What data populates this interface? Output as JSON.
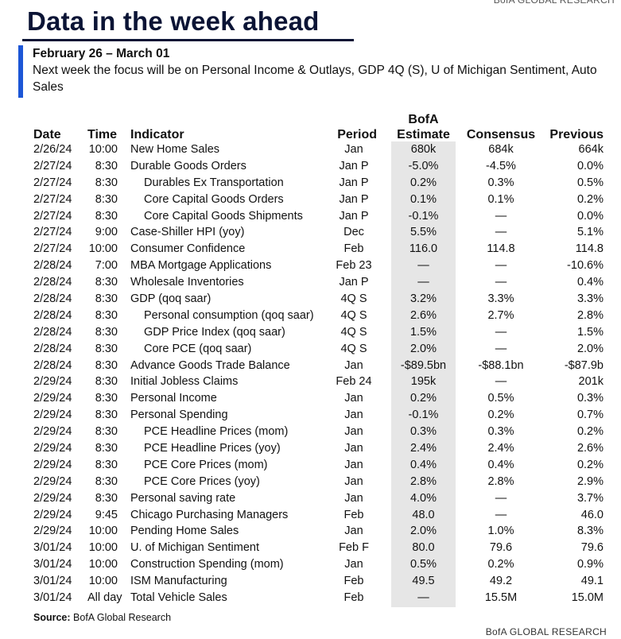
{
  "brand": "BofA GLOBAL RESEARCH",
  "title": "Data in the week ahead",
  "week_range": "February 26 – March 01",
  "focus_text": "Next week the focus will be on Personal Income & Outlays, GDP 4Q (S), U of Michigan Sentiment, Auto Sales",
  "columns": {
    "date": "Date",
    "time": "Time",
    "indicator": "Indicator",
    "period": "Period",
    "estimate_line1": "BofA",
    "estimate_line2": "Estimate",
    "consensus": "Consensus",
    "previous": "Previous"
  },
  "rows": [
    {
      "date": "2/26/24",
      "time": "10:00",
      "indicator": "New Home Sales",
      "sub": false,
      "period": "Jan",
      "estimate": "680k",
      "consensus": "684k",
      "previous": "664k"
    },
    {
      "date": "2/27/24",
      "time": "8:30",
      "indicator": "Durable Goods Orders",
      "sub": false,
      "period": "Jan P",
      "estimate": "-5.0%",
      "consensus": "-4.5%",
      "previous": "0.0%"
    },
    {
      "date": "2/27/24",
      "time": "8:30",
      "indicator": "Durables Ex Transportation",
      "sub": true,
      "period": "Jan P",
      "estimate": "0.2%",
      "consensus": "0.3%",
      "previous": "0.5%"
    },
    {
      "date": "2/27/24",
      "time": "8:30",
      "indicator": "Core Capital Goods Orders",
      "sub": true,
      "period": "Jan P",
      "estimate": "0.1%",
      "consensus": "0.1%",
      "previous": "0.2%"
    },
    {
      "date": "2/27/24",
      "time": "8:30",
      "indicator": "Core Capital Goods Shipments",
      "sub": true,
      "period": "Jan P",
      "estimate": "-0.1%",
      "consensus": "—",
      "previous": "0.0%"
    },
    {
      "date": "2/27/24",
      "time": "9:00",
      "indicator": "Case-Shiller HPI (yoy)",
      "sub": false,
      "period": "Dec",
      "estimate": "5.5%",
      "consensus": "—",
      "previous": "5.1%"
    },
    {
      "date": "2/27/24",
      "time": "10:00",
      "indicator": "Consumer Confidence",
      "sub": false,
      "period": "Feb",
      "estimate": "116.0",
      "consensus": "114.8",
      "previous": "114.8"
    },
    {
      "date": "2/28/24",
      "time": "7:00",
      "indicator": "MBA Mortgage Applications",
      "sub": false,
      "period": "Feb 23",
      "estimate": "—",
      "consensus": "—",
      "previous": "-10.6%"
    },
    {
      "date": "2/28/24",
      "time": "8:30",
      "indicator": "Wholesale Inventories",
      "sub": false,
      "period": "Jan P",
      "estimate": "—",
      "consensus": "—",
      "previous": "0.4%"
    },
    {
      "date": "2/28/24",
      "time": "8:30",
      "indicator": "GDP (qoq saar)",
      "sub": false,
      "period": "4Q S",
      "estimate": "3.2%",
      "consensus": "3.3%",
      "previous": "3.3%"
    },
    {
      "date": "2/28/24",
      "time": "8:30",
      "indicator": "Personal consumption (qoq saar)",
      "sub": true,
      "period": "4Q S",
      "estimate": "2.6%",
      "consensus": "2.7%",
      "previous": "2.8%"
    },
    {
      "date": "2/28/24",
      "time": "8:30",
      "indicator": "GDP Price Index (qoq saar)",
      "sub": true,
      "period": "4Q S",
      "estimate": "1.5%",
      "consensus": "—",
      "previous": "1.5%"
    },
    {
      "date": "2/28/24",
      "time": "8:30",
      "indicator": "Core PCE (qoq saar)",
      "sub": true,
      "period": "4Q S",
      "estimate": "2.0%",
      "consensus": "—",
      "previous": "2.0%"
    },
    {
      "date": "2/28/24",
      "time": "8:30",
      "indicator": "Advance Goods Trade Balance",
      "sub": false,
      "period": "Jan",
      "estimate": "-$89.5bn",
      "consensus": "-$88.1bn",
      "previous": "-$87.9b"
    },
    {
      "date": "2/29/24",
      "time": "8:30",
      "indicator": "Initial Jobless Claims",
      "sub": false,
      "period": "Feb 24",
      "estimate": "195k",
      "consensus": "—",
      "previous": "201k"
    },
    {
      "date": "2/29/24",
      "time": "8:30",
      "indicator": "Personal Income",
      "sub": false,
      "period": "Jan",
      "estimate": "0.2%",
      "consensus": "0.5%",
      "previous": "0.3%"
    },
    {
      "date": "2/29/24",
      "time": "8:30",
      "indicator": "Personal Spending",
      "sub": false,
      "period": "Jan",
      "estimate": "-0.1%",
      "consensus": "0.2%",
      "previous": "0.7%"
    },
    {
      "date": "2/29/24",
      "time": "8:30",
      "indicator": "PCE Headline Prices (mom)",
      "sub": true,
      "period": "Jan",
      "estimate": "0.3%",
      "consensus": "0.3%",
      "previous": "0.2%"
    },
    {
      "date": "2/29/24",
      "time": "8:30",
      "indicator": "PCE Headline Prices (yoy)",
      "sub": true,
      "period": "Jan",
      "estimate": "2.4%",
      "consensus": "2.4%",
      "previous": "2.6%"
    },
    {
      "date": "2/29/24",
      "time": "8:30",
      "indicator": "PCE Core Prices (mom)",
      "sub": true,
      "period": "Jan",
      "estimate": "0.4%",
      "consensus": "0.4%",
      "previous": "0.2%"
    },
    {
      "date": "2/29/24",
      "time": "8:30",
      "indicator": "PCE Core Prices (yoy)",
      "sub": true,
      "period": "Jan",
      "estimate": "2.8%",
      "consensus": "2.8%",
      "previous": "2.9%"
    },
    {
      "date": "2/29/24",
      "time": "8:30",
      "indicator": "Personal saving rate",
      "sub": false,
      "period": "Jan",
      "estimate": "4.0%",
      "consensus": "—",
      "previous": "3.7%"
    },
    {
      "date": "2/29/24",
      "time": "9:45",
      "indicator": "Chicago Purchasing Managers",
      "sub": false,
      "period": "Feb",
      "estimate": "48.0",
      "consensus": "—",
      "previous": "46.0"
    },
    {
      "date": "2/29/24",
      "time": "10:00",
      "indicator": "Pending Home Sales",
      "sub": false,
      "period": "Jan",
      "estimate": "2.0%",
      "consensus": "1.0%",
      "previous": "8.3%"
    },
    {
      "date": "3/01/24",
      "time": "10:00",
      "indicator": "U. of Michigan Sentiment",
      "sub": false,
      "period": "Feb F",
      "estimate": "80.0",
      "consensus": "79.6",
      "previous": "79.6"
    },
    {
      "date": "3/01/24",
      "time": "10:00",
      "indicator": "Construction Spending (mom)",
      "sub": false,
      "period": "Jan",
      "estimate": "0.5%",
      "consensus": "0.2%",
      "previous": "0.9%"
    },
    {
      "date": "3/01/24",
      "time": "10:00",
      "indicator": "ISM Manufacturing",
      "sub": false,
      "period": "Feb",
      "estimate": "49.5",
      "consensus": "49.2",
      "previous": "49.1"
    },
    {
      "date": "3/01/24",
      "time": "All day",
      "indicator": "Total Vehicle Sales",
      "sub": false,
      "period": "Feb",
      "estimate": "—",
      "consensus": "15.5M",
      "previous": "15.0M"
    }
  ],
  "source_label": "Source:",
  "source_text": "BofA Global Research"
}
